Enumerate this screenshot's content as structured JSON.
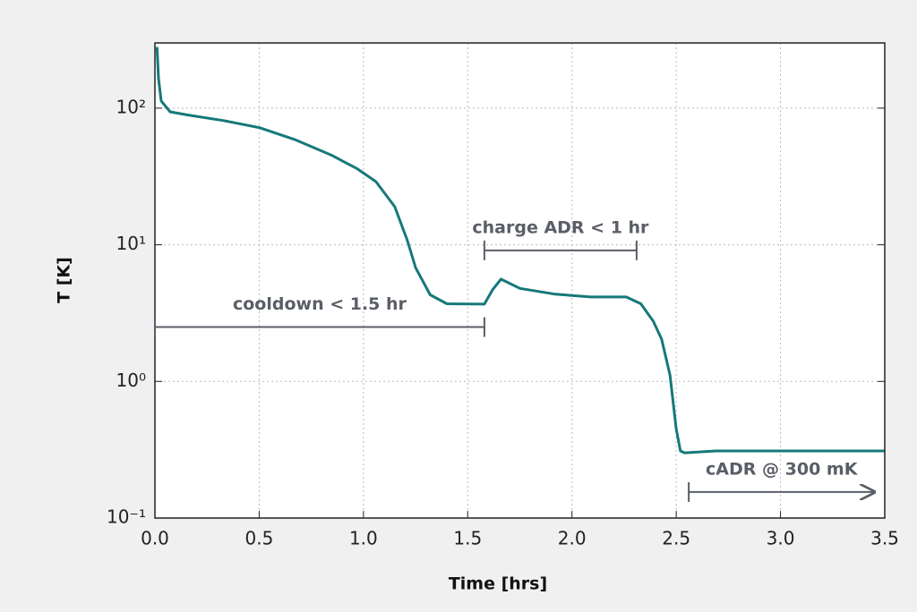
{
  "chart_data": {
    "type": "line",
    "xlabel": "Time [hrs]",
    "ylabel": "T [K]",
    "x": [
      0.01,
      0.017,
      0.03,
      0.073,
      0.16,
      0.33,
      0.5,
      0.67,
      0.85,
      0.97,
      1.06,
      1.15,
      1.21,
      1.25,
      1.32,
      1.4,
      1.58,
      1.62,
      1.66,
      1.75,
      1.92,
      2.09,
      2.26,
      2.33,
      2.39,
      2.43,
      2.47,
      2.5,
      2.52,
      2.54,
      2.69,
      3.12,
      3.5
    ],
    "series": [
      {
        "color": "#16787a",
        "values": [
          280,
          165,
          113,
          94,
          89,
          81,
          72,
          59,
          45,
          36,
          29,
          19,
          10.8,
          6.8,
          4.3,
          3.7,
          3.68,
          4.7,
          5.6,
          4.8,
          4.35,
          4.15,
          4.15,
          3.7,
          2.76,
          2.04,
          1.11,
          0.45,
          0.31,
          0.3,
          0.31,
          0.31,
          0.31
        ]
      }
    ],
    "xlim": [
      0,
      3.5
    ],
    "xticks": [
      {
        "value": 0,
        "label": "0.0"
      },
      0.5,
      {
        "value": 1,
        "label": "1.0"
      },
      1.5,
      {
        "value": 2,
        "label": "2.0"
      },
      2.5,
      {
        "value": 3,
        "label": "3.0"
      },
      3.5
    ],
    "ylim": [
      0.1,
      300
    ],
    "ylog": true,
    "yticks": [
      {
        "value": 0.1,
        "label": "10⁻¹"
      },
      {
        "value": 1,
        "label": "10⁰"
      },
      {
        "value": 10,
        "label": "10¹"
      },
      {
        "value": 100,
        "label": "10²"
      }
    ],
    "grid": true,
    "annotations": [
      {
        "text": "cooldown < 1.5 hr",
        "x": [
          0,
          1.58
        ],
        "y": 2.5,
        "arrow": false
      },
      {
        "text": "charge ADR < 1 hr",
        "x": [
          1.58,
          2.31
        ],
        "y": 9.1,
        "arrow": false
      },
      {
        "text": "cADR @ 300 mK",
        "x": [
          2.56,
          3.45
        ],
        "y": 0.155,
        "arrow": true
      }
    ]
  }
}
